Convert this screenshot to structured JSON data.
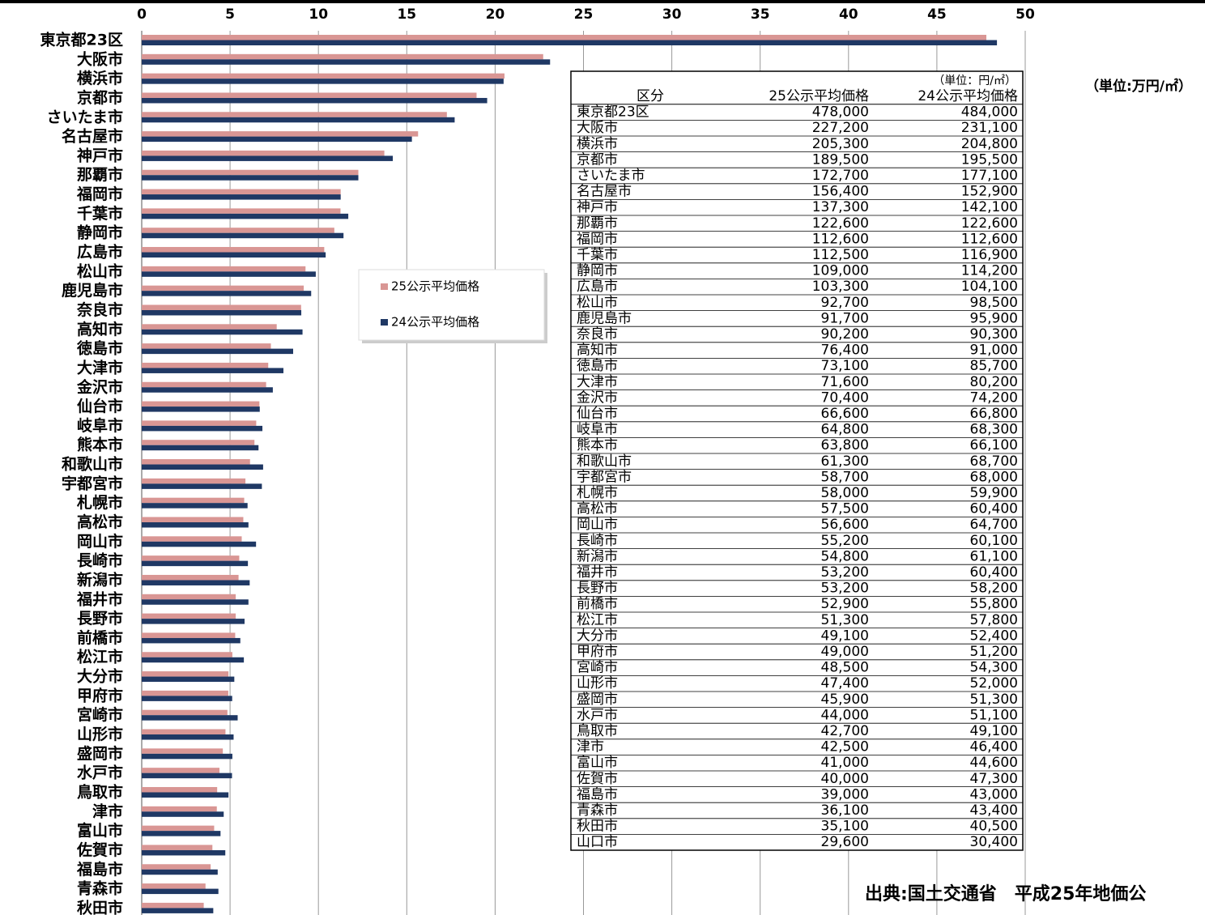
{
  "chart_data": {
    "type": "bar",
    "orientation": "horizontal",
    "unit_note": "（単位:万円/㎡）",
    "source": "出典:国土交通省　平成25年地価公",
    "categories": [
      "東京都23区",
      "大阪市",
      "横浜市",
      "京都市",
      "さいたま市",
      "名古屋市",
      "神戸市",
      "那覇市",
      "福岡市",
      "千葉市",
      "静岡市",
      "広島市",
      "松山市",
      "鹿児島市",
      "奈良市",
      "高知市",
      "徳島市",
      "大津市",
      "金沢市",
      "仙台市",
      "岐阜市",
      "熊本市",
      "和歌山市",
      "宇都宮市",
      "札幌市",
      "高松市",
      "岡山市",
      "長崎市",
      "新潟市",
      "福井市",
      "長野市",
      "前橋市",
      "松江市",
      "大分市",
      "甲府市",
      "宮崎市",
      "山形市",
      "盛岡市",
      "水戸市",
      "鳥取市",
      "津市",
      "富山市",
      "佐賀市",
      "福島市",
      "青森市",
      "秋田市",
      "山口市"
    ],
    "series": [
      {
        "name": "25公示平均価格",
        "color": "#d99694",
        "values": [
          47.8,
          22.72,
          20.53,
          18.95,
          17.27,
          15.64,
          13.73,
          12.26,
          11.26,
          11.25,
          10.9,
          10.33,
          9.27,
          9.17,
          9.02,
          7.64,
          7.31,
          7.16,
          7.04,
          6.66,
          6.48,
          6.38,
          6.13,
          5.87,
          5.8,
          5.75,
          5.66,
          5.52,
          5.48,
          5.32,
          5.32,
          5.29,
          5.13,
          4.91,
          4.9,
          4.85,
          4.74,
          4.59,
          4.4,
          4.27,
          4.25,
          4.1,
          4.0,
          3.9,
          3.61,
          3.51,
          2.96
        ]
      },
      {
        "name": "24公示平均価格",
        "color": "#1f3864",
        "values": [
          48.4,
          23.11,
          20.48,
          19.55,
          17.71,
          15.29,
          14.21,
          12.26,
          11.26,
          11.69,
          11.42,
          10.41,
          9.85,
          9.59,
          9.03,
          9.1,
          8.57,
          8.02,
          7.42,
          6.68,
          6.83,
          6.61,
          6.87,
          6.8,
          5.99,
          6.04,
          6.47,
          6.01,
          6.11,
          6.04,
          5.82,
          5.58,
          5.78,
          5.24,
          5.12,
          5.43,
          5.2,
          5.13,
          5.11,
          4.91,
          4.64,
          4.46,
          4.73,
          4.3,
          4.34,
          4.05,
          3.04
        ]
      }
    ],
    "xlim": [
      0,
      50
    ],
    "xticks": [
      0,
      5,
      10,
      15,
      20,
      25,
      30,
      35,
      40,
      45,
      50
    ],
    "grid": true
  },
  "table": {
    "unit": "（単位：円/㎡）",
    "header": [
      "区分",
      "25公示平均価格",
      "24公示平均価格"
    ],
    "rows": [
      [
        "東京都23区",
        "478,000",
        "484,000"
      ],
      [
        "大阪市",
        "227,200",
        "231,100"
      ],
      [
        "横浜市",
        "205,300",
        "204,800"
      ],
      [
        "京都市",
        "189,500",
        "195,500"
      ],
      [
        "さいたま市",
        "172,700",
        "177,100"
      ],
      [
        "名古屋市",
        "156,400",
        "152,900"
      ],
      [
        "神戸市",
        "137,300",
        "142,100"
      ],
      [
        "那覇市",
        "122,600",
        "122,600"
      ],
      [
        "福岡市",
        "112,600",
        "112,600"
      ],
      [
        "千葉市",
        "112,500",
        "116,900"
      ],
      [
        "静岡市",
        "109,000",
        "114,200"
      ],
      [
        "広島市",
        "103,300",
        "104,100"
      ],
      [
        "松山市",
        "92,700",
        "98,500"
      ],
      [
        "鹿児島市",
        "91,700",
        "95,900"
      ],
      [
        "奈良市",
        "90,200",
        "90,300"
      ],
      [
        "高知市",
        "76,400",
        "91,000"
      ],
      [
        "徳島市",
        "73,100",
        "85,700"
      ],
      [
        "大津市",
        "71,600",
        "80,200"
      ],
      [
        "金沢市",
        "70,400",
        "74,200"
      ],
      [
        "仙台市",
        "66,600",
        "66,800"
      ],
      [
        "岐阜市",
        "64,800",
        "68,300"
      ],
      [
        "熊本市",
        "63,800",
        "66,100"
      ],
      [
        "和歌山市",
        "61,300",
        "68,700"
      ],
      [
        "宇都宮市",
        "58,700",
        "68,000"
      ],
      [
        "札幌市",
        "58,000",
        "59,900"
      ],
      [
        "高松市",
        "57,500",
        "60,400"
      ],
      [
        "岡山市",
        "56,600",
        "64,700"
      ],
      [
        "長崎市",
        "55,200",
        "60,100"
      ],
      [
        "新潟市",
        "54,800",
        "61,100"
      ],
      [
        "福井市",
        "53,200",
        "60,400"
      ],
      [
        "長野市",
        "53,200",
        "58,200"
      ],
      [
        "前橋市",
        "52,900",
        "55,800"
      ],
      [
        "松江市",
        "51,300",
        "57,800"
      ],
      [
        "大分市",
        "49,100",
        "52,400"
      ],
      [
        "甲府市",
        "49,000",
        "51,200"
      ],
      [
        "宮崎市",
        "48,500",
        "54,300"
      ],
      [
        "山形市",
        "47,400",
        "52,000"
      ],
      [
        "盛岡市",
        "45,900",
        "51,300"
      ],
      [
        "水戸市",
        "44,000",
        "51,100"
      ],
      [
        "鳥取市",
        "42,700",
        "49,100"
      ],
      [
        "津市",
        "42,500",
        "46,400"
      ],
      [
        "富山市",
        "41,000",
        "44,600"
      ],
      [
        "佐賀市",
        "40,000",
        "47,300"
      ],
      [
        "福島市",
        "39,000",
        "43,000"
      ],
      [
        "青森市",
        "36,100",
        "43,400"
      ],
      [
        "秋田市",
        "35,100",
        "40,500"
      ],
      [
        "山口市",
        "29,600",
        "30,400"
      ]
    ]
  }
}
